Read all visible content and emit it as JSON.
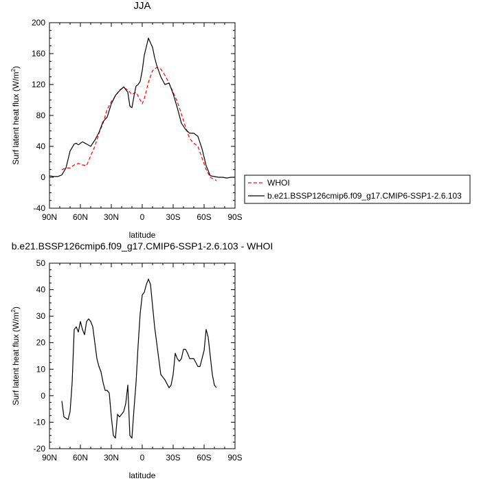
{
  "chart_data": [
    {
      "type": "line",
      "title": "JJA",
      "xlabel": "latitude",
      "ylabel": "Surf latent heat flux (W/m",
      "ylabel_sup": "2",
      "ylabel_end": ")",
      "xlim": [
        90,
        -90
      ],
      "ylim": [
        -40,
        200
      ],
      "xticks": [
        90,
        60,
        30,
        0,
        -30,
        -60,
        -90
      ],
      "xtick_labels": [
        "90N",
        "60N",
        "30N",
        "0",
        "30S",
        "60S",
        "90S"
      ],
      "yticks": [
        -40,
        0,
        40,
        80,
        120,
        160,
        200
      ],
      "ytick_labels": [
        "-40",
        "0",
        "40",
        "80",
        "120",
        "160",
        "200"
      ],
      "legend_position": "right",
      "series": [
        {
          "name": "WHOI",
          "color": "#ff0000",
          "dash": "dashed",
          "x": [
            78,
            74,
            70,
            66,
            62,
            58,
            54,
            50,
            46,
            42,
            38,
            34,
            30,
            26,
            22,
            18,
            14,
            10,
            6,
            2,
            0,
            -2,
            -4,
            -6,
            -10,
            -14,
            -18,
            -22,
            -26,
            -30,
            -34,
            -38,
            -42,
            -46,
            -50,
            -54,
            -58,
            -62,
            -66,
            -70,
            -72
          ],
          "values": [
            10,
            12,
            12,
            16,
            18,
            16,
            15,
            28,
            40,
            57,
            70,
            88,
            98,
            105,
            113,
            116,
            113,
            107,
            110,
            100,
            95,
            102,
            112,
            123,
            138,
            142,
            140,
            132,
            122,
            110,
            98,
            82,
            65,
            50,
            44,
            40,
            25,
            10,
            0,
            -3,
            -4
          ]
        },
        {
          "name": "b.e21.BSSP126cmip6.f09_g17.CMIP6-SSP1-2.6.103",
          "color": "#000000",
          "dash": "solid",
          "x": [
            90,
            86,
            82,
            78,
            74,
            70,
            66,
            64,
            62,
            58,
            54,
            50,
            46,
            42,
            38,
            34,
            30,
            26,
            22,
            18,
            14,
            12,
            10,
            8,
            6,
            4,
            2,
            0,
            -2,
            -6,
            -10,
            -12,
            -14,
            -18,
            -22,
            -26,
            -30,
            -34,
            -38,
            -42,
            -46,
            -50,
            -54,
            -58,
            -62,
            -66,
            -70,
            -74,
            -78,
            -82,
            -86,
            -90
          ],
          "values": [
            2,
            1,
            1,
            3,
            12,
            34,
            43,
            44,
            42,
            46,
            43,
            40,
            48,
            58,
            72,
            78,
            95,
            106,
            112,
            117,
            110,
            92,
            90,
            105,
            118,
            120,
            124,
            138,
            158,
            180,
            168,
            155,
            145,
            130,
            120,
            122,
            108,
            90,
            70,
            62,
            57,
            57,
            53,
            37,
            15,
            2,
            1,
            0,
            0,
            -1,
            0,
            0
          ]
        }
      ]
    },
    {
      "type": "line",
      "title": "b.e21.BSSP126cmip6.f09_g17.CMIP6-SSP1-2.6.103 - WHOI",
      "xlabel": "latitude",
      "ylabel": "Surf latent heat flux (W/m",
      "ylabel_sup": "2",
      "ylabel_end": ")",
      "xlim": [
        90,
        -90
      ],
      "ylim": [
        -20,
        50
      ],
      "xticks": [
        90,
        60,
        30,
        0,
        -30,
        -60,
        -90
      ],
      "xtick_labels": [
        "90N",
        "60N",
        "30N",
        "0",
        "30S",
        "60S",
        "90S"
      ],
      "yticks": [
        -20,
        -10,
        0,
        10,
        20,
        30,
        40,
        50
      ],
      "ytick_labels": [
        "-20",
        "-10",
        "0",
        "10",
        "20",
        "30",
        "40",
        "50"
      ],
      "series": [
        {
          "color": "#000000",
          "dash": "solid",
          "x": [
            78,
            76,
            72,
            70,
            68,
            66,
            64,
            62,
            60,
            58,
            56,
            54,
            52,
            50,
            48,
            44,
            42,
            40,
            38,
            36,
            34,
            32,
            30,
            28,
            26,
            24,
            22,
            20,
            18,
            16,
            14,
            12,
            10,
            8,
            6,
            4,
            2,
            0,
            -2,
            -4,
            -6,
            -8,
            -10,
            -12,
            -14,
            -16,
            -18,
            -22,
            -26,
            -28,
            -30,
            -32,
            -34,
            -36,
            -38,
            -40,
            -42,
            -44,
            -46,
            -50,
            -54,
            -56,
            -58,
            -60,
            -62,
            -64,
            -66,
            -68,
            -70,
            -72
          ],
          "values": [
            -2,
            -8,
            -9,
            -6,
            5,
            25,
            26,
            24,
            28,
            25,
            23,
            28,
            29,
            28,
            26,
            14,
            11,
            9,
            5,
            2,
            2,
            1,
            -8,
            -15,
            -16,
            -7,
            -8,
            -7,
            -6,
            -3,
            4,
            -15,
            -16,
            -5,
            5,
            19,
            31,
            38,
            39,
            42,
            44,
            42,
            34,
            26,
            20,
            14,
            8,
            6,
            3,
            4,
            8,
            16,
            14,
            13,
            14,
            17.5,
            17.5,
            16,
            14,
            14,
            11,
            11,
            14,
            17,
            25,
            22,
            15,
            8,
            4,
            3
          ]
        }
      ]
    }
  ]
}
